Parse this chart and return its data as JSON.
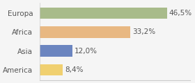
{
  "categories": [
    "America",
    "Asia",
    "Africa",
    "Europa"
  ],
  "values": [
    8.4,
    12.0,
    33.2,
    46.5
  ],
  "labels": [
    "8,4%",
    "12,0%",
    "33,2%",
    "46,5%"
  ],
  "bar_colors": [
    "#f0d070",
    "#6b85c0",
    "#e8b882",
    "#a8bb8a"
  ],
  "background_color": "#f5f5f5",
  "xlim": [
    0,
    55
  ],
  "bar_height": 0.6,
  "label_fontsize": 7.5,
  "category_fontsize": 7.5,
  "label_color": "#555555"
}
